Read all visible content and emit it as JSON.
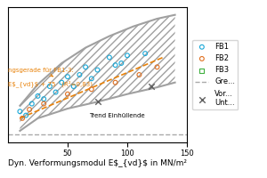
{
  "chart_data": {
    "type": "scatter",
    "xlabel": "Dyn. Verformungsmodul E$_{vd}$ in MN/m²",
    "xlim": [
      0,
      150
    ],
    "xticks": [
      50,
      100,
      150
    ],
    "ylim": [
      30,
      170
    ],
    "tick_labels": "x",
    "grid": false,
    "legend": "center left",
    "series": [
      {
        "name": "FB1",
        "type": "scatter",
        "marker": "circle",
        "color": "#1AA8D8",
        "x": [
          10,
          15,
          20,
          25,
          30,
          35,
          40,
          45,
          50,
          55,
          60,
          65,
          70,
          75,
          85,
          90,
          95,
          100,
          115
        ],
        "values": [
          62,
          58,
          70,
          78,
          75,
          88,
          82,
          92,
          98,
          88,
          100,
          108,
          96,
          105,
          118,
          110,
          112,
          120,
          122
        ]
      },
      {
        "name": "FB2",
        "type": "scatter",
        "marker": "circle",
        "color": "#E07020",
        "x": [
          12,
          18,
          30,
          50,
          70,
          90,
          110,
          125
        ],
        "values": [
          55,
          64,
          70,
          80,
          85,
          92,
          100,
          108
        ]
      },
      {
        "name": "FB3",
        "type": "scatter",
        "marker": "square",
        "color": "#40B040",
        "x": [],
        "values": []
      },
      {
        "name": "Gre...",
        "type": "hline",
        "line_style": "dashed",
        "color": "#AAAAAA",
        "values": [
          38
        ]
      },
      {
        "name": "Vor...\nUnt...",
        "type": "scatter",
        "marker": "x",
        "color": "#606060",
        "x": [
          75,
          120
        ],
        "values": [
          72,
          88
        ]
      }
    ],
    "envelope": {
      "color": "#A0A0A0",
      "upper_x": [
        10,
        25,
        45,
        65,
        85,
        105,
        125,
        140
      ],
      "upper": [
        68,
        90,
        112,
        128,
        140,
        150,
        158,
        162
      ],
      "lower_x": [
        10,
        25,
        50,
        75,
        100,
        125,
        140
      ],
      "lower": [
        42,
        55,
        65,
        72,
        80,
        87,
        92
      ]
    },
    "trend_line": {
      "color": "#E8820A",
      "line_style": "dashed",
      "x": [
        10,
        130
      ],
      "values": [
        55,
        118
      ]
    },
    "annotations": [
      {
        "text": "ngsgerade für FB1-3:",
        "x": 0,
        "y": 102,
        "color": "#E8820A",
        "arrow_to": [
          38,
          98
        ]
      },
      {
        "text": "E$_{vd}$ + 75   (R²=0,83)",
        "x": 0,
        "y": 94,
        "color": "#E8820A"
      },
      {
        "text": "Trend Einhüllende",
        "x": 68,
        "y": 55
      }
    ]
  }
}
